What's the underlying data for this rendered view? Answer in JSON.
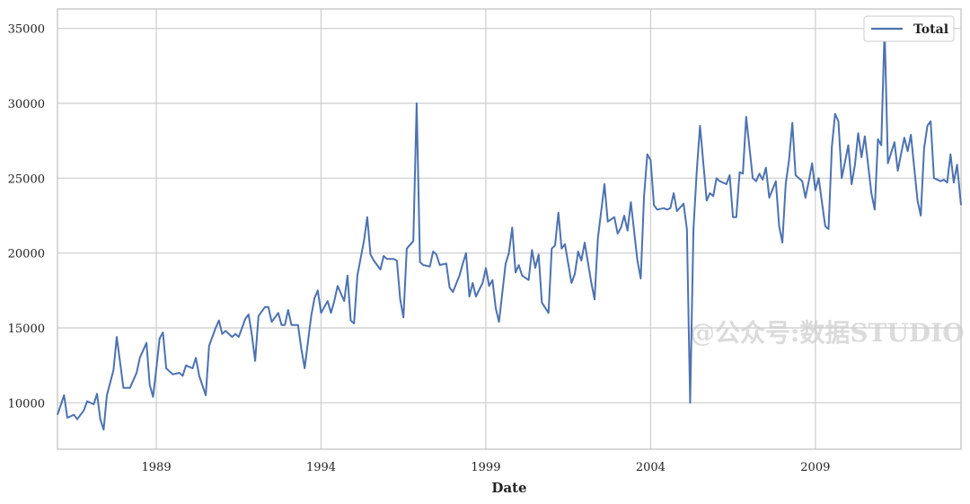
{
  "chart_data": {
    "type": "line",
    "xlabel": "Date",
    "ylabel": "",
    "x_range": [
      1986.0,
      2013.42
    ],
    "ylim": [
      6900,
      36300
    ],
    "x_ticks": [
      1989,
      1994,
      1999,
      2004,
      2009
    ],
    "y_ticks": [
      10000,
      15000,
      20000,
      25000,
      30000,
      35000
    ],
    "grid": true,
    "legend_position": "top-right",
    "series": [
      {
        "name": "Total",
        "color": "#4c72b0",
        "points": [
          [
            1986.0,
            9200
          ],
          [
            1986.2,
            10500
          ],
          [
            1986.3,
            9000
          ],
          [
            1986.5,
            9200
          ],
          [
            1986.6,
            8900
          ],
          [
            1986.8,
            9500
          ],
          [
            1986.9,
            10100
          ],
          [
            1987.1,
            9900
          ],
          [
            1987.2,
            10600
          ],
          [
            1987.3,
            8900
          ],
          [
            1987.4,
            8200
          ],
          [
            1987.5,
            10500
          ],
          [
            1987.7,
            12200
          ],
          [
            1987.8,
            14400
          ],
          [
            1987.9,
            12700
          ],
          [
            1988.0,
            11000
          ],
          [
            1988.2,
            11000
          ],
          [
            1988.4,
            12000
          ],
          [
            1988.5,
            13000
          ],
          [
            1988.7,
            14000
          ],
          [
            1988.8,
            11200
          ],
          [
            1988.9,
            10400
          ],
          [
            1989.0,
            12300
          ],
          [
            1989.1,
            14300
          ],
          [
            1989.2,
            14700
          ],
          [
            1989.3,
            12300
          ],
          [
            1989.5,
            11900
          ],
          [
            1989.7,
            12000
          ],
          [
            1989.8,
            11800
          ],
          [
            1989.9,
            12500
          ],
          [
            1990.1,
            12300
          ],
          [
            1990.2,
            13000
          ],
          [
            1990.3,
            11800
          ],
          [
            1990.5,
            10500
          ],
          [
            1990.6,
            13800
          ],
          [
            1990.8,
            15000
          ],
          [
            1990.9,
            15500
          ],
          [
            1991.0,
            14600
          ],
          [
            1991.1,
            14800
          ],
          [
            1991.3,
            14400
          ],
          [
            1991.4,
            14600
          ],
          [
            1991.5,
            14400
          ],
          [
            1991.7,
            15600
          ],
          [
            1991.8,
            15900
          ],
          [
            1991.9,
            14500
          ],
          [
            1992.0,
            12800
          ],
          [
            1992.1,
            15800
          ],
          [
            1992.3,
            16400
          ],
          [
            1992.4,
            16400
          ],
          [
            1992.5,
            15400
          ],
          [
            1992.7,
            16000
          ],
          [
            1992.8,
            15200
          ],
          [
            1992.9,
            15200
          ],
          [
            1993.0,
            16200
          ],
          [
            1993.1,
            15200
          ],
          [
            1993.3,
            15200
          ],
          [
            1993.4,
            13600
          ],
          [
            1993.5,
            12300
          ],
          [
            1993.7,
            15800
          ],
          [
            1993.8,
            17000
          ],
          [
            1993.9,
            17500
          ],
          [
            1994.0,
            16000
          ],
          [
            1994.2,
            16800
          ],
          [
            1994.3,
            16000
          ],
          [
            1994.4,
            16800
          ],
          [
            1994.5,
            17800
          ],
          [
            1994.7,
            16800
          ],
          [
            1994.8,
            18500
          ],
          [
            1994.9,
            15500
          ],
          [
            1995.0,
            15300
          ],
          [
            1995.1,
            18500
          ],
          [
            1995.3,
            20800
          ],
          [
            1995.4,
            22400
          ],
          [
            1995.5,
            19900
          ],
          [
            1995.6,
            19500
          ],
          [
            1995.8,
            18900
          ],
          [
            1995.9,
            19800
          ],
          [
            1996.0,
            19600
          ],
          [
            1996.2,
            19600
          ],
          [
            1996.3,
            19500
          ],
          [
            1996.4,
            16900
          ],
          [
            1996.5,
            15700
          ],
          [
            1996.6,
            20300
          ],
          [
            1996.8,
            20800
          ],
          [
            1996.9,
            30000
          ],
          [
            1997.0,
            19400
          ],
          [
            1997.1,
            19200
          ],
          [
            1997.3,
            19100
          ],
          [
            1997.4,
            20100
          ],
          [
            1997.5,
            19900
          ],
          [
            1997.6,
            19200
          ],
          [
            1997.8,
            19300
          ],
          [
            1997.9,
            17700
          ],
          [
            1998.0,
            17400
          ],
          [
            1998.2,
            18500
          ],
          [
            1998.3,
            19300
          ],
          [
            1998.4,
            20000
          ],
          [
            1998.5,
            17100
          ],
          [
            1998.6,
            18000
          ],
          [
            1998.7,
            17100
          ],
          [
            1998.9,
            18000
          ],
          [
            1999.0,
            19000
          ],
          [
            1999.1,
            17800
          ],
          [
            1999.2,
            18200
          ],
          [
            1999.3,
            16300
          ],
          [
            1999.4,
            15400
          ],
          [
            1999.6,
            19300
          ],
          [
            1999.7,
            20000
          ],
          [
            1999.8,
            21700
          ],
          [
            1999.9,
            18700
          ],
          [
            2000.0,
            19200
          ],
          [
            2000.1,
            18500
          ],
          [
            2000.3,
            18200
          ],
          [
            2000.4,
            20200
          ],
          [
            2000.5,
            19000
          ],
          [
            2000.6,
            19900
          ],
          [
            2000.7,
            16700
          ],
          [
            2000.9,
            16000
          ],
          [
            2001.0,
            20300
          ],
          [
            2001.1,
            20500
          ],
          [
            2001.2,
            22700
          ],
          [
            2001.3,
            20300
          ],
          [
            2001.4,
            20600
          ],
          [
            2001.6,
            18000
          ],
          [
            2001.7,
            18600
          ],
          [
            2001.8,
            20100
          ],
          [
            2001.9,
            19500
          ],
          [
            2002.0,
            20700
          ],
          [
            2002.2,
            18000
          ],
          [
            2002.3,
            16900
          ],
          [
            2002.4,
            21000
          ],
          [
            2002.5,
            22800
          ],
          [
            2002.6,
            24600
          ],
          [
            2002.7,
            22100
          ],
          [
            2002.9,
            22400
          ],
          [
            2003.0,
            21300
          ],
          [
            2003.1,
            21700
          ],
          [
            2003.2,
            22500
          ],
          [
            2003.3,
            21500
          ],
          [
            2003.4,
            23400
          ],
          [
            2003.6,
            19500
          ],
          [
            2003.7,
            18300
          ],
          [
            2003.8,
            23800
          ],
          [
            2003.9,
            26600
          ],
          [
            2004.0,
            26200
          ],
          [
            2004.1,
            23200
          ],
          [
            2004.2,
            22900
          ],
          [
            2004.4,
            23000
          ],
          [
            2004.5,
            22900
          ],
          [
            2004.6,
            23000
          ],
          [
            2004.7,
            24000
          ],
          [
            2004.8,
            22800
          ],
          [
            2005.0,
            23300
          ],
          [
            2005.1,
            21600
          ],
          [
            2005.2,
            10000
          ],
          [
            2005.3,
            21600
          ],
          [
            2005.4,
            25500
          ],
          [
            2005.5,
            28500
          ],
          [
            2005.7,
            23500
          ],
          [
            2005.8,
            24000
          ],
          [
            2005.9,
            23800
          ],
          [
            2006.0,
            25000
          ],
          [
            2006.1,
            24800
          ],
          [
            2006.3,
            24600
          ],
          [
            2006.4,
            25200
          ],
          [
            2006.5,
            22400
          ],
          [
            2006.6,
            22400
          ],
          [
            2006.7,
            25400
          ],
          [
            2006.8,
            25300
          ],
          [
            2006.9,
            29100
          ],
          [
            2007.1,
            25000
          ],
          [
            2007.2,
            24800
          ],
          [
            2007.3,
            25300
          ],
          [
            2007.4,
            24900
          ],
          [
            2007.5,
            25700
          ],
          [
            2007.6,
            23700
          ],
          [
            2007.8,
            24800
          ],
          [
            2007.9,
            21800
          ],
          [
            2008.0,
            20700
          ],
          [
            2008.1,
            24600
          ],
          [
            2008.2,
            26200
          ],
          [
            2008.3,
            28700
          ],
          [
            2008.4,
            25200
          ],
          [
            2008.6,
            24800
          ],
          [
            2008.7,
            23700
          ],
          [
            2008.8,
            24800
          ],
          [
            2008.9,
            26000
          ],
          [
            2009.0,
            24200
          ],
          [
            2009.1,
            25000
          ],
          [
            2009.3,
            21800
          ],
          [
            2009.4,
            21600
          ],
          [
            2009.5,
            27100
          ],
          [
            2009.6,
            29300
          ],
          [
            2009.7,
            28800
          ],
          [
            2009.8,
            25000
          ],
          [
            2010.0,
            27200
          ],
          [
            2010.1,
            24600
          ],
          [
            2010.2,
            25900
          ],
          [
            2010.3,
            28000
          ],
          [
            2010.4,
            26400
          ],
          [
            2010.5,
            27800
          ],
          [
            2010.7,
            24000
          ],
          [
            2010.8,
            22900
          ],
          [
            2010.9,
            27600
          ],
          [
            2011.0,
            27200
          ],
          [
            2011.1,
            35000
          ],
          [
            2011.2,
            26000
          ],
          [
            2011.4,
            27400
          ],
          [
            2011.5,
            25500
          ],
          [
            2011.6,
            26600
          ],
          [
            2011.7,
            27700
          ],
          [
            2011.8,
            26800
          ],
          [
            2011.9,
            27900
          ],
          [
            2012.1,
            23500
          ],
          [
            2012.2,
            22500
          ],
          [
            2012.3,
            27000
          ],
          [
            2012.4,
            28500
          ],
          [
            2012.5,
            28800
          ],
          [
            2012.6,
            25000
          ],
          [
            2012.8,
            24800
          ],
          [
            2012.9,
            24900
          ],
          [
            2013.0,
            24700
          ],
          [
            2013.1,
            26600
          ],
          [
            2013.2,
            24700
          ],
          [
            2013.3,
            25900
          ],
          [
            2013.42,
            23200
          ]
        ]
      }
    ]
  },
  "watermark": "@公众号:数据STUDIO"
}
